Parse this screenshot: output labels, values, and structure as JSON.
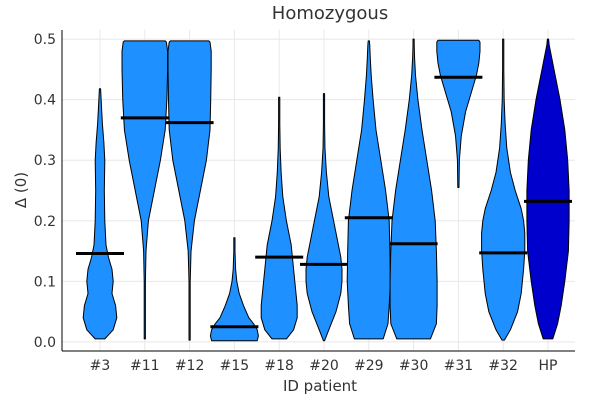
{
  "chart_data": {
    "type": "violin",
    "title": "Homozygous",
    "xlabel": "ID patient",
    "ylabel": "Δ (0)",
    "ylim": [
      -0.015,
      0.515
    ],
    "yticks": [
      0.0,
      0.1,
      0.2,
      0.3,
      0.4,
      0.5
    ],
    "ytick_labels": [
      "0.0",
      "0.1",
      "0.2",
      "0.3",
      "0.4",
      "0.5"
    ],
    "grid": true,
    "colors": {
      "default": "#1e90ff",
      "HP": "#0000cd"
    },
    "categories": [
      "#3",
      "#11",
      "#12",
      "#15",
      "#18",
      "#20",
      "#29",
      "#30",
      "#31",
      "#32",
      "HP"
    ],
    "series": [
      {
        "name": "#3",
        "median": 0.146,
        "min": 0.005,
        "max": 0.418,
        "profile": [
          [
            0.005,
            0.2
          ],
          [
            0.02,
            0.55
          ],
          [
            0.04,
            0.7
          ],
          [
            0.06,
            0.65
          ],
          [
            0.08,
            0.5
          ],
          [
            0.1,
            0.55
          ],
          [
            0.12,
            0.5
          ],
          [
            0.14,
            0.35
          ],
          [
            0.16,
            0.25
          ],
          [
            0.2,
            0.2
          ],
          [
            0.25,
            0.18
          ],
          [
            0.3,
            0.2
          ],
          [
            0.33,
            0.16
          ],
          [
            0.36,
            0.1
          ],
          [
            0.39,
            0.06
          ],
          [
            0.418,
            0.0
          ]
        ]
      },
      {
        "name": "#11",
        "median": 0.37,
        "min": 0.005,
        "max": 0.497,
        "profile": [
          [
            0.005,
            0.0
          ],
          [
            0.1,
            0.02
          ],
          [
            0.15,
            0.05
          ],
          [
            0.2,
            0.15
          ],
          [
            0.25,
            0.4
          ],
          [
            0.3,
            0.65
          ],
          [
            0.35,
            0.85
          ],
          [
            0.4,
            0.92
          ],
          [
            0.45,
            0.95
          ],
          [
            0.48,
            0.95
          ],
          [
            0.495,
            0.9
          ],
          [
            0.497,
            0.85
          ]
        ]
      },
      {
        "name": "#12",
        "median": 0.362,
        "min": 0.003,
        "max": 0.497,
        "profile": [
          [
            0.003,
            0.0
          ],
          [
            0.1,
            0.02
          ],
          [
            0.15,
            0.06
          ],
          [
            0.2,
            0.2
          ],
          [
            0.25,
            0.45
          ],
          [
            0.3,
            0.7
          ],
          [
            0.35,
            0.85
          ],
          [
            0.4,
            0.88
          ],
          [
            0.45,
            0.9
          ],
          [
            0.48,
            0.9
          ],
          [
            0.495,
            0.85
          ],
          [
            0.497,
            0.8
          ]
        ]
      },
      {
        "name": "#15",
        "median": 0.025,
        "min": 0.002,
        "max": 0.172,
        "profile": [
          [
            0.002,
            0.95
          ],
          [
            0.01,
            1.0
          ],
          [
            0.02,
            0.95
          ],
          [
            0.03,
            0.8
          ],
          [
            0.04,
            0.6
          ],
          [
            0.06,
            0.38
          ],
          [
            0.08,
            0.2
          ],
          [
            0.1,
            0.1
          ],
          [
            0.12,
            0.05
          ],
          [
            0.15,
            0.02
          ],
          [
            0.172,
            0.0
          ]
        ]
      },
      {
        "name": "#18",
        "median": 0.14,
        "min": 0.005,
        "max": 0.404,
        "profile": [
          [
            0.005,
            0.3
          ],
          [
            0.02,
            0.6
          ],
          [
            0.04,
            0.75
          ],
          [
            0.06,
            0.75
          ],
          [
            0.08,
            0.7
          ],
          [
            0.1,
            0.65
          ],
          [
            0.12,
            0.6
          ],
          [
            0.14,
            0.55
          ],
          [
            0.16,
            0.5
          ],
          [
            0.18,
            0.4
          ],
          [
            0.2,
            0.3
          ],
          [
            0.24,
            0.15
          ],
          [
            0.28,
            0.08
          ],
          [
            0.32,
            0.04
          ],
          [
            0.36,
            0.02
          ],
          [
            0.404,
            0.0
          ]
        ]
      },
      {
        "name": "#20",
        "median": 0.128,
        "min": 0.002,
        "max": 0.41,
        "profile": [
          [
            0.002,
            0.0
          ],
          [
            0.02,
            0.2
          ],
          [
            0.05,
            0.5
          ],
          [
            0.08,
            0.7
          ],
          [
            0.1,
            0.75
          ],
          [
            0.12,
            0.75
          ],
          [
            0.14,
            0.7
          ],
          [
            0.16,
            0.6
          ],
          [
            0.2,
            0.4
          ],
          [
            0.24,
            0.2
          ],
          [
            0.28,
            0.1
          ],
          [
            0.32,
            0.04
          ],
          [
            0.36,
            0.02
          ],
          [
            0.41,
            0.0
          ]
        ]
      },
      {
        "name": "#29",
        "median": 0.205,
        "min": 0.005,
        "max": 0.497,
        "profile": [
          [
            0.005,
            0.6
          ],
          [
            0.03,
            0.8
          ],
          [
            0.06,
            0.85
          ],
          [
            0.1,
            0.9
          ],
          [
            0.15,
            0.88
          ],
          [
            0.2,
            0.85
          ],
          [
            0.25,
            0.7
          ],
          [
            0.3,
            0.5
          ],
          [
            0.35,
            0.3
          ],
          [
            0.4,
            0.18
          ],
          [
            0.44,
            0.1
          ],
          [
            0.47,
            0.06
          ],
          [
            0.49,
            0.04
          ],
          [
            0.497,
            0.02
          ]
        ]
      },
      {
        "name": "#30",
        "median": 0.162,
        "min": 0.005,
        "max": 0.5,
        "profile": [
          [
            0.005,
            0.7
          ],
          [
            0.03,
            0.95
          ],
          [
            0.06,
            0.98
          ],
          [
            0.1,
            0.98
          ],
          [
            0.15,
            0.95
          ],
          [
            0.2,
            0.9
          ],
          [
            0.25,
            0.75
          ],
          [
            0.3,
            0.55
          ],
          [
            0.35,
            0.35
          ],
          [
            0.4,
            0.18
          ],
          [
            0.44,
            0.08
          ],
          [
            0.47,
            0.04
          ],
          [
            0.49,
            0.02
          ],
          [
            0.5,
            0.01
          ]
        ]
      },
      {
        "name": "#31",
        "median": 0.437,
        "min": 0.255,
        "max": 0.498,
        "profile": [
          [
            0.255,
            0.0
          ],
          [
            0.3,
            0.04
          ],
          [
            0.34,
            0.12
          ],
          [
            0.38,
            0.3
          ],
          [
            0.4,
            0.45
          ],
          [
            0.42,
            0.6
          ],
          [
            0.44,
            0.75
          ],
          [
            0.46,
            0.85
          ],
          [
            0.48,
            0.9
          ],
          [
            0.495,
            0.9
          ],
          [
            0.498,
            0.85
          ]
        ]
      },
      {
        "name": "#32",
        "median": 0.147,
        "min": 0.003,
        "max": 0.5,
        "profile": [
          [
            0.003,
            0.05
          ],
          [
            0.02,
            0.3
          ],
          [
            0.05,
            0.6
          ],
          [
            0.08,
            0.75
          ],
          [
            0.12,
            0.85
          ],
          [
            0.15,
            0.9
          ],
          [
            0.18,
            0.9
          ],
          [
            0.2,
            0.85
          ],
          [
            0.22,
            0.75
          ],
          [
            0.25,
            0.5
          ],
          [
            0.28,
            0.3
          ],
          [
            0.32,
            0.15
          ],
          [
            0.36,
            0.08
          ],
          [
            0.4,
            0.04
          ],
          [
            0.45,
            0.02
          ],
          [
            0.5,
            0.0
          ]
        ]
      },
      {
        "name": "HP",
        "median": 0.232,
        "min": 0.005,
        "max": 0.5,
        "profile": [
          [
            0.005,
            0.2
          ],
          [
            0.03,
            0.4
          ],
          [
            0.06,
            0.55
          ],
          [
            0.1,
            0.7
          ],
          [
            0.15,
            0.85
          ],
          [
            0.2,
            0.88
          ],
          [
            0.25,
            0.88
          ],
          [
            0.3,
            0.82
          ],
          [
            0.35,
            0.7
          ],
          [
            0.4,
            0.5
          ],
          [
            0.44,
            0.3
          ],
          [
            0.47,
            0.15
          ],
          [
            0.49,
            0.05
          ],
          [
            0.5,
            0.0
          ]
        ]
      }
    ]
  }
}
